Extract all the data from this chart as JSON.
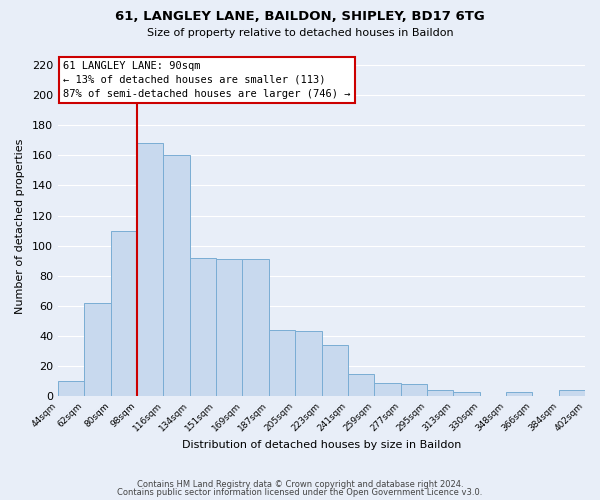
{
  "title1": "61, LANGLEY LANE, BAILDON, SHIPLEY, BD17 6TG",
  "title2": "Size of property relative to detached houses in Baildon",
  "xlabel": "Distribution of detached houses by size in Baildon",
  "ylabel": "Number of detached properties",
  "bar_labels": [
    "44sqm",
    "62sqm",
    "80sqm",
    "98sqm",
    "116sqm",
    "134sqm",
    "151sqm",
    "169sqm",
    "187sqm",
    "205sqm",
    "223sqm",
    "241sqm",
    "259sqm",
    "277sqm",
    "295sqm",
    "313sqm",
    "330sqm",
    "348sqm",
    "366sqm",
    "384sqm",
    "402sqm"
  ],
  "bar_values": [
    10,
    62,
    110,
    168,
    160,
    92,
    91,
    91,
    44,
    43,
    34,
    15,
    9,
    8,
    4,
    3,
    0,
    3,
    0,
    4
  ],
  "bar_color": "#c8d9ee",
  "bar_edge_color": "#7aadd4",
  "vline_color": "#cc0000",
  "ylim": [
    0,
    225
  ],
  "yticks": [
    0,
    20,
    40,
    60,
    80,
    100,
    120,
    140,
    160,
    180,
    200,
    220
  ],
  "annotation_title": "61 LANGLEY LANE: 90sqm",
  "annotation_line1": "← 13% of detached houses are smaller (113)",
  "annotation_line2": "87% of semi-detached houses are larger (746) →",
  "annotation_box_color": "#ffffff",
  "annotation_box_edge": "#cc0000",
  "footer1": "Contains HM Land Registry data © Crown copyright and database right 2024.",
  "footer2": "Contains public sector information licensed under the Open Government Licence v3.0.",
  "background_color": "#e8eef8",
  "plot_bg_color": "#e8eef8",
  "grid_color": "#ffffff"
}
